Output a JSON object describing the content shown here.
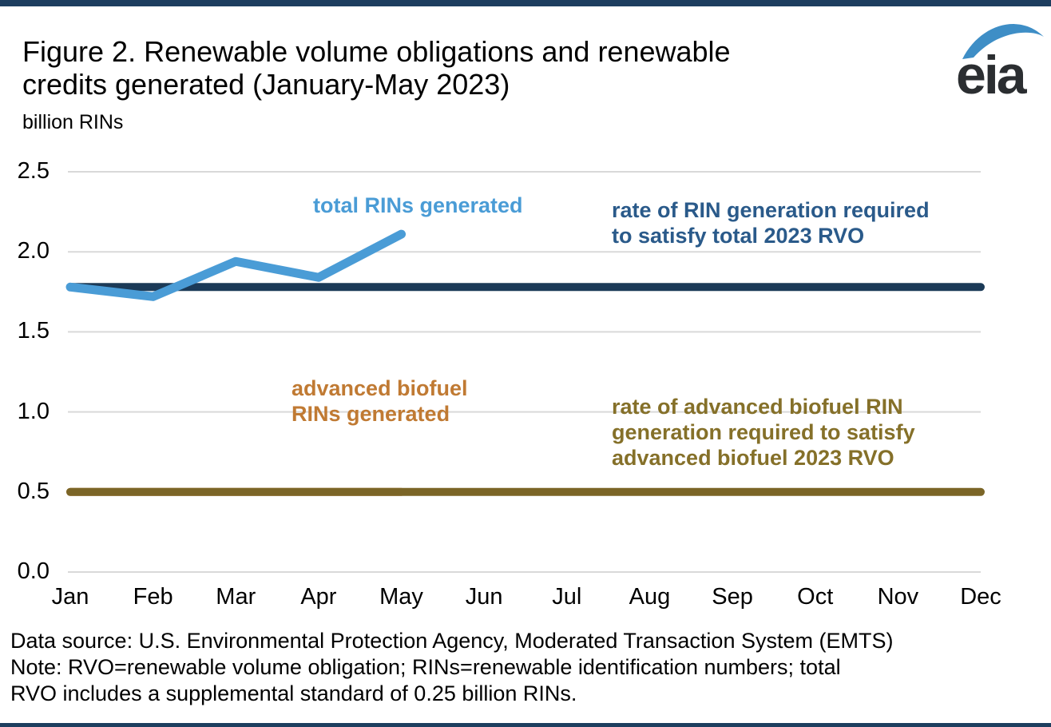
{
  "colors": {
    "total_generated_blue": "#4A9CD6",
    "total_rvo_navy": "#1B3A57",
    "total_rvo_label_navy": "#2A5A8A",
    "advanced_generated_orange": "#C07A33",
    "advanced_rvo_olive": "#7B6527",
    "advanced_rvo_label_olive": "#857029",
    "gridline_gray": "#D9D9D9",
    "edge_rule_navy": "#1D3E5F",
    "logo_blue": "#3E8EC6",
    "logo_dark": "#2B2E31"
  },
  "header": {
    "title_lines": [
      "Figure 2. Renewable volume obligations and renewable",
      "credits generated (January-May 2023)"
    ],
    "units_label": "billion RINs",
    "logo_text": "eia"
  },
  "chart_data": {
    "type": "line",
    "title": "Figure 2. Renewable volume obligations and renewable credits generated (January-May 2023)",
    "ylabel": "billion RINs",
    "xlabel": "",
    "ylim": [
      0,
      2.5
    ],
    "ytick_step": 0.5,
    "grid": true,
    "legend_position": "none (direct line labels)",
    "categories": [
      "Jan",
      "Feb",
      "Mar",
      "Apr",
      "May",
      "Jun",
      "Jul",
      "Aug",
      "Sep",
      "Oct",
      "Nov",
      "Dec"
    ],
    "series": [
      {
        "name": "advanced biofuel RINs generated",
        "color": "#C07A33",
        "stroke_width": 10,
        "values": [
          0.5,
          0.5,
          0.5,
          0.5,
          0.5
        ]
      },
      {
        "name": "rate of advanced biofuel RIN generation required to satisfy advanced biofuel 2023 RVO",
        "color": "#7B6527",
        "stroke_width": 10,
        "values": [
          0.5,
          0.5,
          0.5,
          0.5,
          0.5,
          0.5,
          0.5,
          0.5,
          0.5,
          0.5,
          0.5,
          0.5
        ]
      },
      {
        "name": "rate of RIN generation required to satisfy total 2023 RVO",
        "color": "#1B3A57",
        "stroke_width": 10,
        "values": [
          1.78,
          1.78,
          1.78,
          1.78,
          1.78,
          1.78,
          1.78,
          1.78,
          1.78,
          1.78,
          1.78,
          1.78
        ]
      },
      {
        "name": "total RINs generated",
        "color": "#4A9CD6",
        "stroke_width": 11,
        "values": [
          1.78,
          1.72,
          1.94,
          1.84,
          2.11
        ]
      }
    ]
  },
  "axes": {
    "y_ticks": [
      "2.5",
      "2.0",
      "1.5",
      "1.0",
      "0.5",
      "0.0"
    ],
    "x_ticks": [
      "Jan",
      "Feb",
      "Mar",
      "Apr",
      "May",
      "Jun",
      "Jul",
      "Aug",
      "Sep",
      "Oct",
      "Nov",
      "Dec"
    ]
  },
  "annotations": {
    "total_generated": {
      "lines": [
        "total RINs generated"
      ]
    },
    "total_rvo": {
      "lines": [
        "rate of RIN generation required",
        "to satisfy total 2023 RVO"
      ]
    },
    "advanced_generated": {
      "lines": [
        "advanced biofuel",
        "RINs generated"
      ]
    },
    "advanced_rvo": {
      "lines": [
        "rate of advanced biofuel RIN",
        "generation required to satisfy",
        "advanced biofuel 2023 RVO"
      ]
    }
  },
  "footer": {
    "lines": [
      "Data source: U.S. Environmental Protection Agency, Moderated Transaction System (EMTS)",
      "Note: RVO=renewable volume obligation; RINs=renewable identification numbers; total",
      "RVO includes a supplemental standard of 0.25 billion RINs."
    ]
  }
}
